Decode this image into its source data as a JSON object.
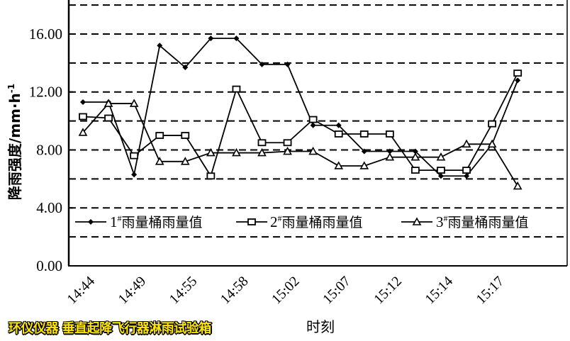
{
  "chart_data": {
    "type": "line",
    "xlabel": "时刻",
    "ylabel": "降雨强度/mm·h",
    "ylabel_sup": "-1",
    "ylim": [
      0,
      18
    ],
    "yticks": [
      "0.00",
      "4.00",
      "8.00",
      "12.00",
      "16.00"
    ],
    "ytick_values": [
      0,
      4,
      8,
      12,
      16
    ],
    "grid": "horizontal dashed every 2",
    "legend_placement": "inside-bottom",
    "x_tick_labels": [
      "14:44",
      "14:49",
      "14:55",
      "14:58",
      "15:02",
      "15:07",
      "15:12",
      "15:14",
      "15:17"
    ],
    "x_count": 18,
    "series": [
      {
        "name": "1",
        "name_sup": "#",
        "name_suffix": "雨量桶雨量值",
        "marker": "diamond",
        "values": [
          11.3,
          11.3,
          6.3,
          15.2,
          13.7,
          15.7,
          15.7,
          13.9,
          13.9,
          9.7,
          9.7,
          7.9,
          7.9,
          7.9,
          6.2,
          6.2,
          8.4,
          12.8
        ]
      },
      {
        "name": "2",
        "name_sup": "#",
        "name_suffix": "雨量桶雨量值",
        "marker": "square",
        "values": [
          10.3,
          10.2,
          7.6,
          9.0,
          9.0,
          6.2,
          12.2,
          8.5,
          8.5,
          10.1,
          9.1,
          9.1,
          9.1,
          6.6,
          6.6,
          6.6,
          9.8,
          13.3
        ]
      },
      {
        "name": "3",
        "name_sup": "#",
        "name_suffix": "雨量桶雨量值",
        "marker": "triangle",
        "values": [
          9.2,
          11.2,
          11.2,
          7.2,
          7.2,
          7.8,
          7.8,
          7.8,
          7.9,
          7.9,
          6.9,
          6.9,
          7.5,
          7.5,
          7.5,
          8.4,
          8.4,
          5.5
        ]
      }
    ]
  },
  "watermark": "环仪仪器 垂直起降飞行器淋雨试验箱"
}
